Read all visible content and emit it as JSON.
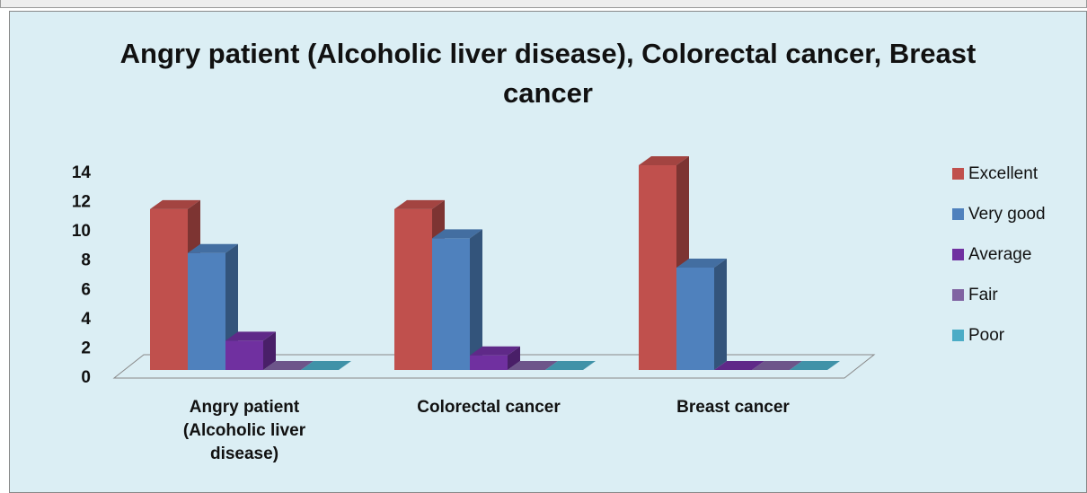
{
  "chart_data": {
    "type": "bar3d",
    "title": "Angry patient (Alcoholic liver disease), Colorectal cancer, Breast cancer",
    "categories": [
      "Angry patient (Alcoholic liver disease)",
      "Colorectal cancer",
      "Breast cancer"
    ],
    "series": [
      {
        "name": "Excellent",
        "color": "#c0504d",
        "values": [
          11,
          11,
          14
        ]
      },
      {
        "name": "Very good",
        "color": "#4f81bd",
        "values": [
          8,
          9,
          7
        ]
      },
      {
        "name": "Average",
        "color": "#7030a0",
        "values": [
          2,
          1,
          0
        ]
      },
      {
        "name": "Fair",
        "color": "#8064a2",
        "values": [
          0,
          0,
          0
        ]
      },
      {
        "name": "Poor",
        "color": "#4bacc6",
        "values": [
          0,
          0,
          0
        ]
      }
    ],
    "ylim": [
      0,
      14
    ],
    "yticks": [
      0,
      2,
      4,
      6,
      8,
      10,
      12,
      14
    ],
    "legend": "right"
  }
}
